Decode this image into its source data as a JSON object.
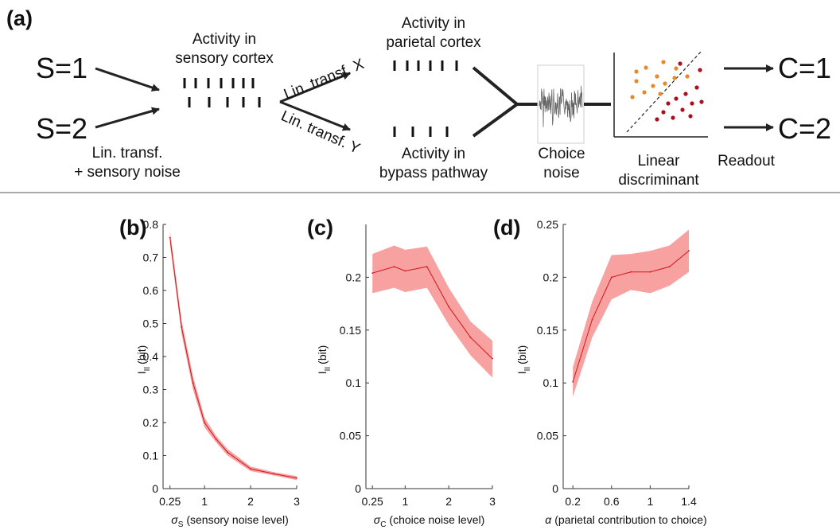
{
  "panel_a": {
    "letter": "(a)",
    "stimulus_1": "S=1",
    "stimulus_2": "S=2",
    "lin_transf_sensory_line1": "Lin. transf.",
    "lin_transf_sensory_line2": "+ sensory noise",
    "sensory_line1": "Activity in",
    "sensory_line2": "sensory cortex",
    "lin_transf_x": "Lin. transf. X",
    "lin_transf_y": "Lin. transf. Y",
    "parietal_line1": "Activity in",
    "parietal_line2": "parietal cortex",
    "bypass_line1": "Activity in",
    "bypass_line2": "bypass pathway",
    "choice_noise_line1": "Choice",
    "choice_noise_line2": "noise",
    "discriminant_line1": "Linear",
    "discriminant_line2": "discriminant",
    "readout": "Readout",
    "choice_1": "C=1",
    "choice_2": "C=2"
  },
  "colors": {
    "line": "#d0161b",
    "band": "#f7a1a1",
    "dots_class1": "#e48a2a",
    "dots_class2": "#a8101e"
  },
  "chart_data": [
    {
      "letter": "(b)",
      "type": "line",
      "ylabel_main": "I",
      "ylabel_sub": "II",
      "ylabel_unit": "(bit)",
      "xlabel_symbol": "σ",
      "xlabel_sub": "S",
      "xlabel_text": "(sensory noise level)",
      "xlim": [
        0.1,
        3
      ],
      "ylim": [
        0,
        0.8
      ],
      "xticks": [
        0.25,
        1,
        2,
        3
      ],
      "xtick_labels": [
        "0.25",
        "1",
        "2",
        "3"
      ],
      "yticks": [
        0,
        0.1,
        0.2,
        0.3,
        0.4,
        0.5,
        0.6,
        0.7,
        0.8
      ],
      "ytick_labels": [
        "0",
        "0.1",
        "0.2",
        "0.3",
        "0.4",
        "0.5",
        "0.6",
        "0.7",
        "0.8"
      ],
      "x": [
        0.25,
        0.5,
        0.75,
        1,
        1.25,
        1.5,
        2,
        2.5,
        3
      ],
      "y": [
        0.76,
        0.49,
        0.32,
        0.2,
        0.15,
        0.11,
        0.06,
        0.045,
        0.032
      ],
      "y_lower": [
        0.74,
        0.47,
        0.3,
        0.185,
        0.14,
        0.1,
        0.053,
        0.04,
        0.026
      ],
      "y_upper": [
        0.78,
        0.51,
        0.34,
        0.215,
        0.16,
        0.12,
        0.067,
        0.05,
        0.038
      ]
    },
    {
      "letter": "(c)",
      "type": "line",
      "ylabel_main": "I",
      "ylabel_sub": "II",
      "ylabel_unit": "(bit)",
      "xlabel_symbol": "σ",
      "xlabel_sub": "C",
      "xlabel_text": "(choice noise level)",
      "xlim": [
        0.1,
        3
      ],
      "ylim": [
        0,
        0.25
      ],
      "xticks": [
        0.25,
        1,
        2,
        3
      ],
      "xtick_labels": [
        "0.25",
        "1",
        "2",
        "3"
      ],
      "yticks": [
        0,
        0.05,
        0.1,
        0.15,
        0.2
      ],
      "ytick_labels": [
        "0",
        "0.05",
        "0.1",
        "0.15",
        "0.2"
      ],
      "x": [
        0.25,
        0.75,
        1,
        1.5,
        2,
        2.5,
        3
      ],
      "y": [
        0.204,
        0.21,
        0.206,
        0.21,
        0.172,
        0.143,
        0.123
      ],
      "y_lower": [
        0.185,
        0.19,
        0.186,
        0.19,
        0.155,
        0.126,
        0.105
      ],
      "y_upper": [
        0.222,
        0.23,
        0.226,
        0.229,
        0.19,
        0.158,
        0.14
      ]
    },
    {
      "letter": "(d)",
      "type": "line",
      "ylabel_main": "I",
      "ylabel_sub": "II",
      "ylabel_unit": "(bit)",
      "xlabel_symbol": "α",
      "xlabel_sub": "",
      "xlabel_text": "(parietal contribution to choice)",
      "xlim": [
        0.1,
        1.4
      ],
      "ylim": [
        0,
        0.25
      ],
      "xticks": [
        0.2,
        0.6,
        1,
        1.4
      ],
      "xtick_labels": [
        "0.2",
        "0.6",
        "1",
        "1.4"
      ],
      "yticks": [
        0,
        0.05,
        0.1,
        0.15,
        0.2,
        0.25
      ],
      "ytick_labels": [
        "0",
        "0.05",
        "0.1",
        "0.15",
        "0.2",
        "0.25"
      ],
      "x": [
        0.2,
        0.4,
        0.6,
        0.8,
        1.0,
        1.2,
        1.4
      ],
      "y": [
        0.101,
        0.16,
        0.2,
        0.205,
        0.205,
        0.21,
        0.225
      ],
      "y_lower": [
        0.087,
        0.143,
        0.179,
        0.188,
        0.185,
        0.192,
        0.205
      ],
      "y_upper": [
        0.115,
        0.177,
        0.221,
        0.222,
        0.225,
        0.23,
        0.245
      ]
    }
  ]
}
